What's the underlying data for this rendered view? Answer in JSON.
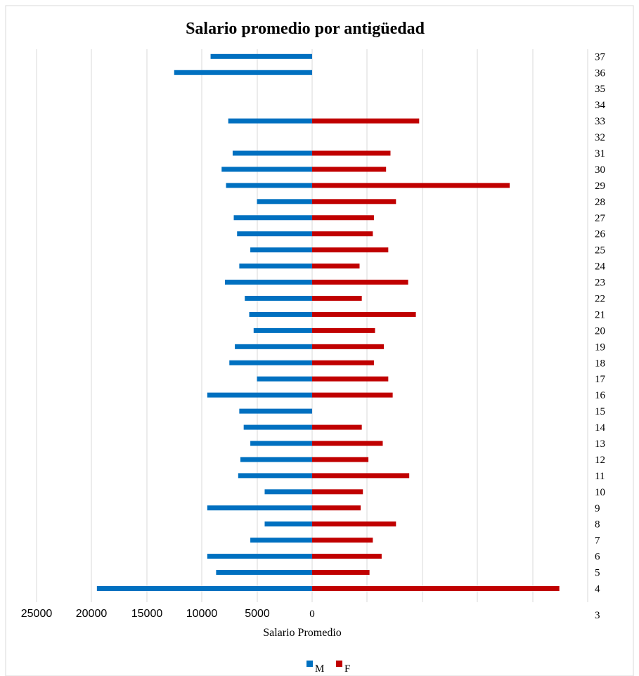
{
  "chart_data": {
    "type": "bar",
    "orientation": "horizontal-butterfly",
    "title": "Salario promedio por antigüedad",
    "xlabel": "Salario Promedio",
    "ylabel": "",
    "y_categories": [
      3,
      4,
      5,
      6,
      7,
      8,
      9,
      10,
      11,
      12,
      13,
      14,
      15,
      16,
      17,
      18,
      19,
      20,
      21,
      22,
      23,
      24,
      25,
      26,
      27,
      28,
      29,
      30,
      31,
      32,
      33,
      34,
      35,
      36,
      37
    ],
    "x_tick_labels": [
      "25000",
      "20000",
      "15000",
      "10000",
      "5000",
      "0"
    ],
    "xlim_left": [
      25000,
      0
    ],
    "grid": true,
    "legend_position": "bottom",
    "series": [
      {
        "name": "M",
        "color": "#0070C0",
        "values": {
          "4": 19500,
          "5": 8700,
          "6": 9500,
          "7": 5600,
          "8": 4300,
          "9": 9500,
          "10": 4300,
          "11": 6700,
          "12": 6500,
          "13": 5600,
          "14": 6200,
          "15": 6600,
          "16": 9500,
          "17": 5000,
          "18": 7500,
          "19": 7000,
          "20": 5300,
          "21": 5700,
          "22": 6100,
          "23": 7900,
          "24": 6600,
          "25": 5600,
          "26": 6800,
          "27": 7100,
          "28": 5000,
          "29": 7800,
          "30": 8200,
          "31": 7200,
          "33": 7600,
          "36": 12500,
          "37": 9200
        }
      },
      {
        "name": "F",
        "color": "#C00000",
        "values": {
          "4": 22400,
          "5": 5200,
          "6": 6300,
          "7": 5500,
          "8": 7600,
          "9": 4400,
          "10": 4600,
          "11": 8800,
          "12": 5100,
          "13": 6400,
          "14": 4500,
          "16": 7300,
          "17": 6900,
          "18": 5600,
          "19": 6500,
          "20": 5700,
          "21": 9400,
          "22": 4500,
          "23": 8700,
          "24": 4300,
          "25": 6900,
          "26": 5500,
          "27": 5600,
          "28": 7600,
          "29": 17900,
          "30": 6700,
          "31": 7100,
          "33": 9700,
          "36": 0,
          "37": 0
        }
      }
    ],
    "legend": [
      {
        "label": "M",
        "color": "#0070C0"
      },
      {
        "label": "F",
        "color": "#C00000"
      }
    ]
  }
}
